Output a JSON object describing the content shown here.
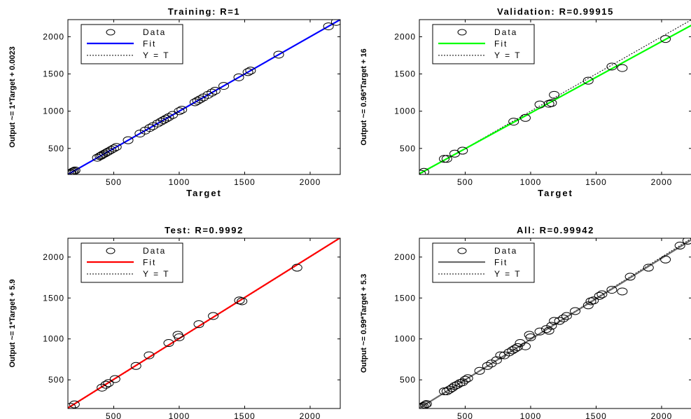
{
  "chart_data": [
    {
      "type": "scatter",
      "title": "Training: R=1",
      "xlabel": "Target",
      "ylabel": "Output ~= 1*Target + 0.0023",
      "xlim": [
        150,
        2230
      ],
      "ylim": [
        150,
        2230
      ],
      "xticks": [
        500,
        1000,
        1500,
        2000
      ],
      "yticks": [
        500,
        1000,
        1500,
        2000
      ],
      "fit_color": "#0000ff",
      "fit": {
        "slope": 1,
        "intercept": 0.0023
      },
      "legend": [
        "Data",
        "Fit",
        "Y = T"
      ],
      "points": [
        [
          160,
          160
        ],
        [
          170,
          170
        ],
        [
          175,
          174
        ],
        [
          185,
          186
        ],
        [
          195,
          195
        ],
        [
          205,
          204
        ],
        [
          375,
          375
        ],
        [
          395,
          395
        ],
        [
          405,
          404
        ],
        [
          415,
          416
        ],
        [
          430,
          430
        ],
        [
          445,
          445
        ],
        [
          460,
          460
        ],
        [
          480,
          480
        ],
        [
          500,
          500
        ],
        [
          520,
          520
        ],
        [
          610,
          610
        ],
        [
          700,
          700
        ],
        [
          740,
          740
        ],
        [
          775,
          775
        ],
        [
          800,
          800
        ],
        [
          835,
          835
        ],
        [
          860,
          860
        ],
        [
          880,
          880
        ],
        [
          900,
          900
        ],
        [
          920,
          920
        ],
        [
          950,
          950
        ],
        [
          1000,
          1000
        ],
        [
          1020,
          1020
        ],
        [
          1120,
          1120
        ],
        [
          1140,
          1140
        ],
        [
          1160,
          1160
        ],
        [
          1185,
          1185
        ],
        [
          1220,
          1220
        ],
        [
          1250,
          1250
        ],
        [
          1275,
          1275
        ],
        [
          1340,
          1340
        ],
        [
          1455,
          1455
        ],
        [
          1525,
          1525
        ],
        [
          1545,
          1545
        ],
        [
          1760,
          1760
        ],
        [
          2140,
          2140
        ],
        [
          2200,
          2200
        ]
      ]
    },
    {
      "type": "scatter",
      "title": "Validation: R=0.99915",
      "xlabel": "Target",
      "ylabel": "Output ~= 0.96*Target + 16",
      "xlim": [
        150,
        2230
      ],
      "ylim": [
        150,
        2230
      ],
      "xticks": [
        500,
        1000,
        1500,
        2000
      ],
      "yticks": [
        500,
        1000,
        1500,
        2000
      ],
      "fit_color": "#00ff00",
      "fit": {
        "slope": 0.96,
        "intercept": 16
      },
      "legend": [
        "Data",
        "Fit",
        "Y = T"
      ],
      "points": [
        [
          160,
          160
        ],
        [
          185,
          185
        ],
        [
          340,
          360
        ],
        [
          360,
          360
        ],
        [
          420,
          430
        ],
        [
          480,
          470
        ],
        [
          870,
          860
        ],
        [
          960,
          910
        ],
        [
          1070,
          1090
        ],
        [
          1140,
          1100
        ],
        [
          1160,
          1110
        ],
        [
          1180,
          1220
        ],
        [
          1440,
          1410
        ],
        [
          1620,
          1600
        ],
        [
          1700,
          1580
        ],
        [
          2030,
          1970
        ]
      ]
    },
    {
      "type": "scatter",
      "title": "Test: R=0.9992",
      "xlabel": "Target",
      "ylabel": "Output ~= 1*Target + 5.9",
      "xlim": [
        150,
        2230
      ],
      "ylim": [
        150,
        2230
      ],
      "xticks": [
        500,
        1000,
        1500,
        2000
      ],
      "yticks": [
        500,
        1000,
        1500,
        2000
      ],
      "fit_color": "#ff0000",
      "fit": {
        "slope": 1,
        "intercept": 5.9
      },
      "legend": [
        "Data",
        "Fit",
        "Y = T"
      ],
      "points": [
        [
          170,
          170
        ],
        [
          200,
          200
        ],
        [
          410,
          405
        ],
        [
          440,
          440
        ],
        [
          460,
          460
        ],
        [
          510,
          510
        ],
        [
          670,
          670
        ],
        [
          770,
          800
        ],
        [
          920,
          950
        ],
        [
          990,
          1050
        ],
        [
          1000,
          1020
        ],
        [
          1150,
          1180
        ],
        [
          1260,
          1280
        ],
        [
          1460,
          1470
        ],
        [
          1480,
          1460
        ],
        [
          1900,
          1870
        ]
      ]
    },
    {
      "type": "scatter",
      "title": "All: R=0.99942",
      "xlabel": "Target",
      "ylabel": "Output ~= 0.99*Target + 5.3",
      "xlim": [
        150,
        2230
      ],
      "ylim": [
        150,
        2230
      ],
      "xticks": [
        500,
        1000,
        1500,
        2000
      ],
      "yticks": [
        500,
        1000,
        1500,
        2000
      ],
      "fit_color": "#6b6b6b",
      "fit": {
        "slope": 0.99,
        "intercept": 5.3
      },
      "legend": [
        "Data",
        "Fit",
        "Y = T"
      ],
      "points": [
        [
          160,
          160
        ],
        [
          170,
          170
        ],
        [
          180,
          180
        ],
        [
          195,
          195
        ],
        [
          205,
          205
        ],
        [
          340,
          360
        ],
        [
          360,
          360
        ],
        [
          380,
          380
        ],
        [
          400,
          400
        ],
        [
          420,
          425
        ],
        [
          440,
          440
        ],
        [
          460,
          460
        ],
        [
          480,
          470
        ],
        [
          500,
          500
        ],
        [
          520,
          520
        ],
        [
          610,
          610
        ],
        [
          670,
          670
        ],
        [
          700,
          700
        ],
        [
          740,
          740
        ],
        [
          770,
          800
        ],
        [
          800,
          800
        ],
        [
          835,
          835
        ],
        [
          860,
          860
        ],
        [
          880,
          880
        ],
        [
          900,
          900
        ],
        [
          920,
          950
        ],
        [
          960,
          910
        ],
        [
          990,
          1050
        ],
        [
          1000,
          1020
        ],
        [
          1070,
          1090
        ],
        [
          1120,
          1120
        ],
        [
          1140,
          1100
        ],
        [
          1160,
          1160
        ],
        [
          1180,
          1220
        ],
        [
          1220,
          1220
        ],
        [
          1250,
          1250
        ],
        [
          1275,
          1280
        ],
        [
          1340,
          1340
        ],
        [
          1440,
          1410
        ],
        [
          1460,
          1460
        ],
        [
          1480,
          1470
        ],
        [
          1525,
          1525
        ],
        [
          1545,
          1545
        ],
        [
          1620,
          1600
        ],
        [
          1700,
          1580
        ],
        [
          1760,
          1760
        ],
        [
          1900,
          1870
        ],
        [
          2030,
          1970
        ],
        [
          2140,
          2140
        ],
        [
          2200,
          2200
        ]
      ]
    }
  ]
}
